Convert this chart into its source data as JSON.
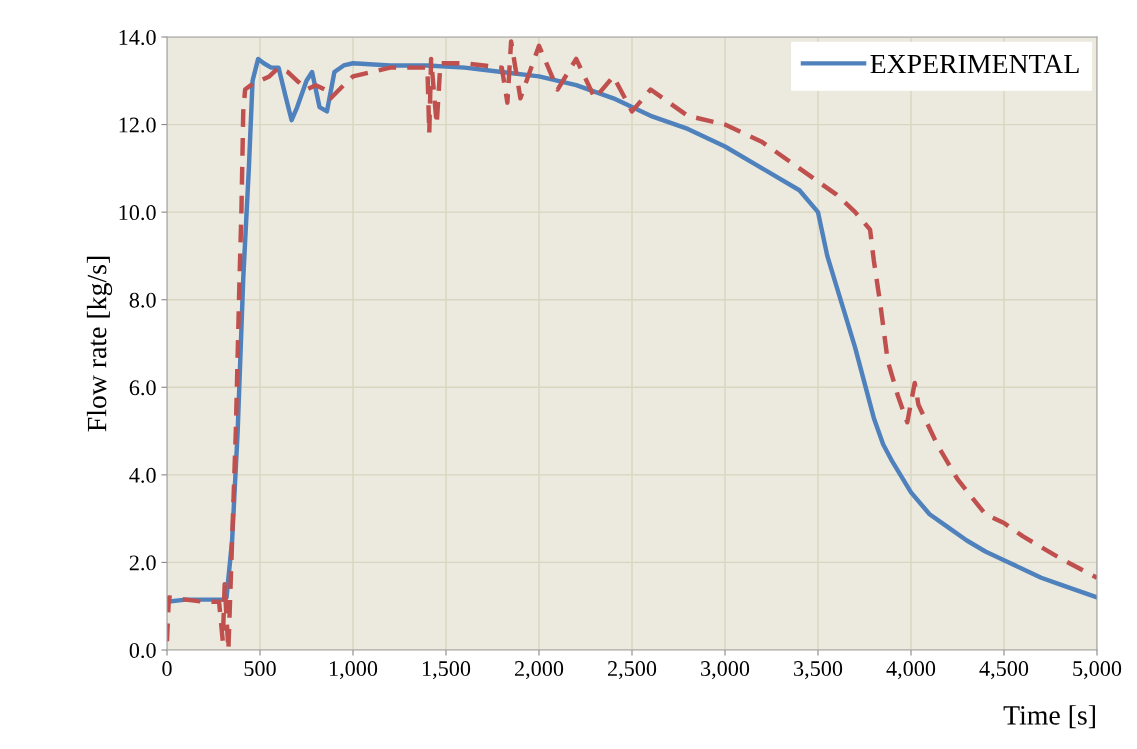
{
  "chart_data": {
    "type": "line",
    "xlabel": "Time [s]",
    "ylabel": "Flow rate [kg/s]",
    "xlim": [
      0,
      5000
    ],
    "xticks": [
      0,
      {
        "value": 500,
        "label": "500"
      },
      {
        "value": 1000,
        "label": "1,000"
      },
      {
        "value": 1500,
        "label": "1,500"
      },
      {
        "value": 2000,
        "label": "2,000"
      },
      {
        "value": 2500,
        "label": "2,500"
      },
      {
        "value": 3000,
        "label": "3,000"
      },
      {
        "value": 3500,
        "label": "3,500"
      },
      {
        "value": 4000,
        "label": "4,000"
      },
      {
        "value": 4500,
        "label": "4,500"
      },
      {
        "value": 5000,
        "label": "5,000"
      }
    ],
    "ylim": [
      0,
      14
    ],
    "yticks": [
      {
        "value": 0,
        "label": "0.0"
      },
      {
        "value": 2,
        "label": "2.0"
      },
      {
        "value": 4,
        "label": "4.0"
      },
      {
        "value": 6,
        "label": "6.0"
      },
      {
        "value": 8,
        "label": "8.0"
      },
      {
        "value": 10,
        "label": "10.0"
      },
      {
        "value": 12,
        "label": "12.0"
      },
      {
        "value": 14,
        "label": "14.0"
      }
    ],
    "grid": true,
    "legend": "top right",
    "marker": "none",
    "series": [
      {
        "name": "EXPERIMENTAL",
        "color": "#4f81bd",
        "line_style": "solid",
        "x": [
          0,
          100,
          200,
          300,
          320,
          350,
          380,
          410,
          440,
          460,
          490,
          520,
          560,
          600,
          640,
          670,
          700,
          750,
          780,
          820,
          860,
          900,
          950,
          1000,
          1200,
          1400,
          1600,
          1800,
          2000,
          2200,
          2400,
          2600,
          2800,
          3000,
          3200,
          3400,
          3500,
          3550,
          3600,
          3650,
          3700,
          3750,
          3800,
          3850,
          3900,
          4000,
          4100,
          4200,
          4300,
          4400,
          4500,
          4600,
          4700,
          4800,
          4900,
          5000
        ],
        "values": [
          1.1,
          1.15,
          1.15,
          1.15,
          1.2,
          2.5,
          5.0,
          8.5,
          11.0,
          13.0,
          13.5,
          13.4,
          13.3,
          13.3,
          12.6,
          12.1,
          12.4,
          13.0,
          13.2,
          12.4,
          12.3,
          13.2,
          13.35,
          13.4,
          13.35,
          13.35,
          13.3,
          13.2,
          13.1,
          12.9,
          12.6,
          12.2,
          11.9,
          11.5,
          11.0,
          10.5,
          10.0,
          9.0,
          8.3,
          7.6,
          6.9,
          6.1,
          5.3,
          4.7,
          4.3,
          3.6,
          3.1,
          2.8,
          2.5,
          2.25,
          2.05,
          1.85,
          1.65,
          1.5,
          1.35,
          1.2
        ]
      },
      {
        "color": "#c0504d",
        "line_style": "dashed",
        "x": [
          0,
          10,
          100,
          200,
          280,
          300,
          310,
          330,
          350,
          370,
          390,
          400,
          410,
          420,
          450,
          500,
          550,
          600,
          650,
          700,
          750,
          800,
          850,
          880,
          950,
          1000,
          1200,
          1400,
          1410,
          1420,
          1450,
          1470,
          1600,
          1800,
          1830,
          1850,
          1900,
          2000,
          2100,
          2200,
          2300,
          2400,
          2500,
          2600,
          2800,
          3000,
          3200,
          3400,
          3600,
          3700,
          3780,
          3800,
          3835,
          3875,
          3930,
          3980,
          4020,
          4040,
          4140,
          4250,
          4400,
          4500,
          4600,
          4800,
          5000
        ],
        "values": [
          0.2,
          1.2,
          1.15,
          1.1,
          1.1,
          0.2,
          1.5,
          0.0,
          2.5,
          5.0,
          8.5,
          10.0,
          12.3,
          12.8,
          12.9,
          13.0,
          13.1,
          13.3,
          13.2,
          13.0,
          12.8,
          12.9,
          12.8,
          12.6,
          12.9,
          13.1,
          13.3,
          13.3,
          11.8,
          13.5,
          12.0,
          13.4,
          13.4,
          13.3,
          12.5,
          13.9,
          12.6,
          13.8,
          12.8,
          13.5,
          12.6,
          13.1,
          12.3,
          12.8,
          12.2,
          12.0,
          11.6,
          11.0,
          10.4,
          10.0,
          9.6,
          8.9,
          7.9,
          6.6,
          5.8,
          5.2,
          6.1,
          5.6,
          4.7,
          3.9,
          3.1,
          2.9,
          2.6,
          2.1,
          1.65
        ]
      }
    ]
  }
}
